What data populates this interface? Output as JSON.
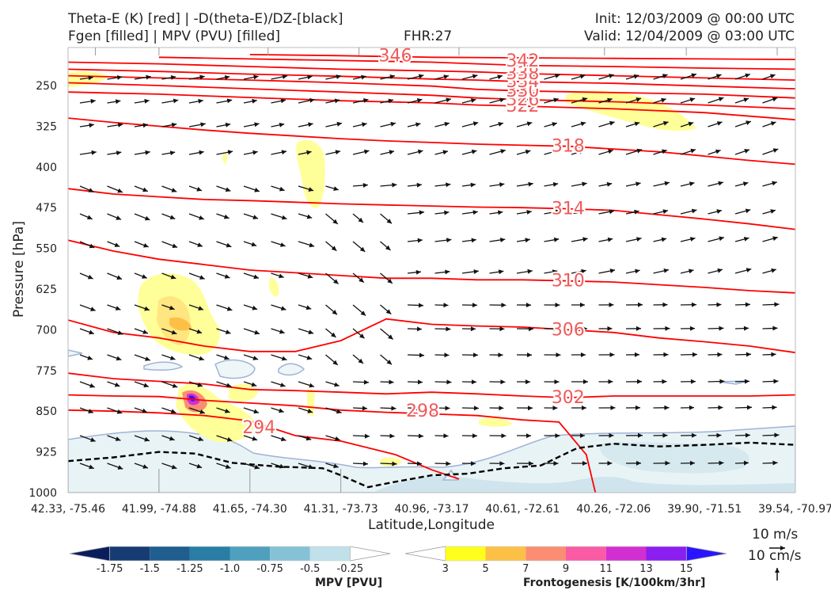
{
  "header": {
    "line1_left": "Theta-E (K) [red] | -D(theta-E)/DZ-[black]",
    "line2_left": "Fgen [filled] | MPV (PVU) [filled]",
    "fhr": "FHR:27",
    "init": "Init: 12/03/2009 @ 00:00 UTC",
    "valid": "Valid: 12/04/2009 @ 03:00 UTC"
  },
  "chart_data": {
    "type": "cross-section",
    "xlabel": "Latitude,Longitude",
    "ylabel": "Pressure [hPa]",
    "x_ticks": [
      "42.33, -75.46",
      "41.99, -74.88",
      "41.65, -74.30",
      "41.31, -73.73",
      "40.96, -73.17",
      "40.61, -72.61",
      "40.26, -72.06",
      "39.90, -71.51",
      "39.54, -70.97"
    ],
    "y_ticks": [
      "250",
      "325",
      "400",
      "475",
      "550",
      "625",
      "700",
      "775",
      "850",
      "925",
      "1000"
    ],
    "ylim": [
      1000,
      180
    ],
    "theta_e_contours": [
      {
        "label": "294",
        "points": [
          [
            0,
            848
          ],
          [
            0.5,
            850
          ],
          [
            1,
            853
          ],
          [
            1.5,
            858
          ],
          [
            2,
            868
          ],
          [
            2.5,
            895
          ],
          [
            3,
            905
          ],
          [
            3.6,
            930
          ],
          [
            4,
            958
          ],
          [
            4.3,
            975
          ]
        ]
      },
      {
        "label": "298",
        "points": [
          [
            0,
            820
          ],
          [
            0.5,
            822
          ],
          [
            1,
            823
          ],
          [
            1.5,
            830
          ],
          [
            2,
            835
          ],
          [
            2.5,
            840
          ],
          [
            3,
            848
          ],
          [
            3.5,
            852
          ],
          [
            4,
            855
          ],
          [
            4.5,
            858
          ],
          [
            5,
            866
          ],
          [
            5.4,
            870
          ],
          [
            5.7,
            930
          ],
          [
            5.8,
            1000
          ]
        ]
      },
      {
        "label": "302",
        "points": [
          [
            0,
            780
          ],
          [
            0.5,
            790
          ],
          [
            1,
            795
          ],
          [
            1.5,
            800
          ],
          [
            2,
            810
          ],
          [
            2.5,
            812
          ],
          [
            3,
            815
          ],
          [
            3.5,
            818
          ],
          [
            4,
            815
          ],
          [
            4.5,
            818
          ],
          [
            5,
            822
          ],
          [
            5.5,
            825
          ],
          [
            6,
            822
          ],
          [
            6.5,
            822
          ],
          [
            7,
            822
          ],
          [
            7.5,
            822
          ],
          [
            8,
            820
          ],
          [
            8.5,
            820
          ],
          [
            9,
            820
          ]
        ]
      },
      {
        "label": "306",
        "points": [
          [
            0,
            682
          ],
          [
            0.5,
            705
          ],
          [
            1,
            715
          ],
          [
            1.5,
            730
          ],
          [
            2,
            740
          ],
          [
            2.5,
            740
          ],
          [
            3,
            720
          ],
          [
            3.5,
            680
          ],
          [
            4,
            690
          ],
          [
            4.5,
            693
          ],
          [
            5,
            695
          ],
          [
            5.5,
            700
          ],
          [
            6,
            705
          ],
          [
            6.5,
            715
          ],
          [
            7,
            722
          ],
          [
            7.5,
            730
          ],
          [
            8,
            742
          ],
          [
            8.5,
            755
          ],
          [
            9,
            770
          ],
          [
            9,
            960
          ],
          [
            8.6,
            1000
          ]
        ]
      },
      {
        "label": "310",
        "points": [
          [
            0,
            535
          ],
          [
            0.5,
            555
          ],
          [
            1,
            570
          ],
          [
            1.5,
            580
          ],
          [
            2,
            590
          ],
          [
            2.5,
            595
          ],
          [
            3,
            600
          ],
          [
            3.5,
            605
          ],
          [
            4,
            605
          ],
          [
            4.5,
            608
          ],
          [
            5,
            608
          ],
          [
            5.5,
            610
          ],
          [
            6,
            612
          ],
          [
            6.5,
            617
          ],
          [
            7,
            622
          ],
          [
            7.5,
            628
          ],
          [
            8,
            632
          ],
          [
            8.5,
            638
          ],
          [
            9,
            645
          ]
        ]
      },
      {
        "label": "314",
        "points": [
          [
            0,
            440
          ],
          [
            0.5,
            450
          ],
          [
            1,
            455
          ],
          [
            1.5,
            460
          ],
          [
            2,
            462
          ],
          [
            2.5,
            465
          ],
          [
            3,
            468
          ],
          [
            3.5,
            470
          ],
          [
            4,
            472
          ],
          [
            4.5,
            474
          ],
          [
            5,
            475
          ],
          [
            5.5,
            477
          ],
          [
            6,
            480
          ],
          [
            6.5,
            488
          ],
          [
            7,
            496
          ],
          [
            7.5,
            505
          ],
          [
            8,
            515
          ],
          [
            8.5,
            525
          ],
          [
            9,
            535
          ]
        ]
      },
      {
        "label": "318",
        "points": [
          [
            0,
            310
          ],
          [
            0.5,
            318
          ],
          [
            1,
            325
          ],
          [
            1.5,
            332
          ],
          [
            2,
            338
          ],
          [
            2.5,
            343
          ],
          [
            3,
            348
          ],
          [
            3.5,
            352
          ],
          [
            4,
            355
          ],
          [
            4.5,
            358
          ],
          [
            5,
            360
          ],
          [
            5.5,
            362
          ],
          [
            6,
            367
          ],
          [
            6.5,
            372
          ],
          [
            7,
            380
          ],
          [
            7.5,
            388
          ],
          [
            8,
            395
          ],
          [
            8.5,
            405
          ],
          [
            9,
            415
          ]
        ]
      },
      {
        "label": "322",
        "points": [
          [
            0,
            262
          ],
          [
            1,
            266
          ],
          [
            2,
            272
          ],
          [
            3,
            278
          ],
          [
            4,
            282
          ],
          [
            4.5,
            286
          ],
          [
            5,
            288
          ],
          [
            6,
            293
          ],
          [
            7,
            300
          ],
          [
            8,
            313
          ],
          [
            9,
            328
          ]
        ]
      },
      {
        "label": "326",
        "points": [
          [
            0,
            245
          ],
          [
            1,
            250
          ],
          [
            2,
            256
          ],
          [
            3,
            262
          ],
          [
            4,
            268
          ],
          [
            4.5,
            273
          ],
          [
            5,
            276
          ],
          [
            6,
            280
          ],
          [
            7,
            286
          ],
          [
            8,
            293
          ],
          [
            9,
            302
          ]
        ]
      },
      {
        "label": "330",
        "points": [
          [
            0,
            232
          ],
          [
            1,
            236
          ],
          [
            2,
            240
          ],
          [
            3,
            245
          ],
          [
            4,
            251
          ],
          [
            4.5,
            257
          ],
          [
            5,
            260
          ],
          [
            6,
            263
          ],
          [
            7,
            266
          ],
          [
            8,
            273
          ],
          [
            9,
            280
          ]
        ]
      },
      {
        "label": "334",
        "points": [
          [
            0,
            220
          ],
          [
            1,
            224
          ],
          [
            2,
            229
          ],
          [
            3,
            233
          ],
          [
            4,
            238
          ],
          [
            4.5,
            240
          ],
          [
            5,
            243
          ],
          [
            6,
            246
          ],
          [
            7,
            251
          ],
          [
            8,
            256
          ],
          [
            9,
            262
          ]
        ]
      },
      {
        "label": "338",
        "points": [
          [
            0,
            207
          ],
          [
            1,
            210
          ],
          [
            2,
            215
          ],
          [
            3,
            220
          ],
          [
            4,
            223
          ],
          [
            4.5,
            225
          ],
          [
            5,
            228
          ],
          [
            6,
            232
          ],
          [
            7,
            236
          ],
          [
            8,
            240
          ],
          [
            9,
            244
          ]
        ]
      },
      {
        "label": "342",
        "points": [
          [
            1,
            198
          ],
          [
            2,
            201
          ],
          [
            3,
            204
          ],
          [
            4,
            207
          ],
          [
            4.5,
            210
          ],
          [
            5,
            213
          ],
          [
            6,
            215
          ],
          [
            7,
            218
          ],
          [
            8,
            220
          ],
          [
            9,
            222
          ]
        ]
      },
      {
        "label": "346",
        "points": [
          [
            2,
            193
          ],
          [
            3,
            195
          ],
          [
            4,
            198
          ],
          [
            5,
            199
          ],
          [
            6,
            200
          ],
          [
            7,
            201
          ],
          [
            8,
            202
          ],
          [
            9,
            203
          ]
        ]
      }
    ],
    "stability_contour_black_dashed": [
      [
        0,
        942
      ],
      [
        0.5,
        935
      ],
      [
        1,
        925
      ],
      [
        1.4,
        928
      ],
      [
        1.8,
        945
      ],
      [
        2.3,
        952
      ],
      [
        2.8,
        955
      ],
      [
        3.0,
        968
      ],
      [
        3.3,
        990
      ],
      [
        3.6,
        980
      ],
      [
        4,
        968
      ],
      [
        4.4,
        965
      ],
      [
        4.8,
        955
      ],
      [
        5.2,
        950
      ],
      [
        5.6,
        918
      ],
      [
        6,
        910
      ],
      [
        6.5,
        915
      ],
      [
        7,
        912
      ],
      [
        7.5,
        908
      ],
      [
        8,
        912
      ],
      [
        8.5,
        905
      ],
      [
        9,
        902
      ]
    ],
    "mpv_legend": {
      "label": "MPV [PVU]",
      "ticks": [
        "-1.75",
        "-1.5",
        "-1.25",
        "-1.0",
        "-0.75",
        "-0.5",
        "-0.25"
      ],
      "colors": [
        "#0b1e5c",
        "#163c73",
        "#1f5e8e",
        "#2a7ea5",
        "#4fa0bf",
        "#86c2d6",
        "#c0e0ea",
        "#ffffff"
      ]
    },
    "fgen_legend": {
      "label": "Frontogenesis [K/100km/3hr]",
      "ticks": [
        "3",
        "5",
        "7",
        "9",
        "11",
        "13",
        "15"
      ],
      "colors": [
        "#ffffff",
        "#ffff1c",
        "#fdc046",
        "#fb8d72",
        "#fa5ba4",
        "#d22fd2",
        "#8b1ef0",
        "#2a14ff"
      ]
    },
    "vector_key": {
      "horizontal": "10 m/s",
      "vertical": "10 cm/s"
    },
    "colors": {
      "theta_e": "#ff0000",
      "label": "#f05a5a",
      "arrow": "#111111"
    }
  }
}
